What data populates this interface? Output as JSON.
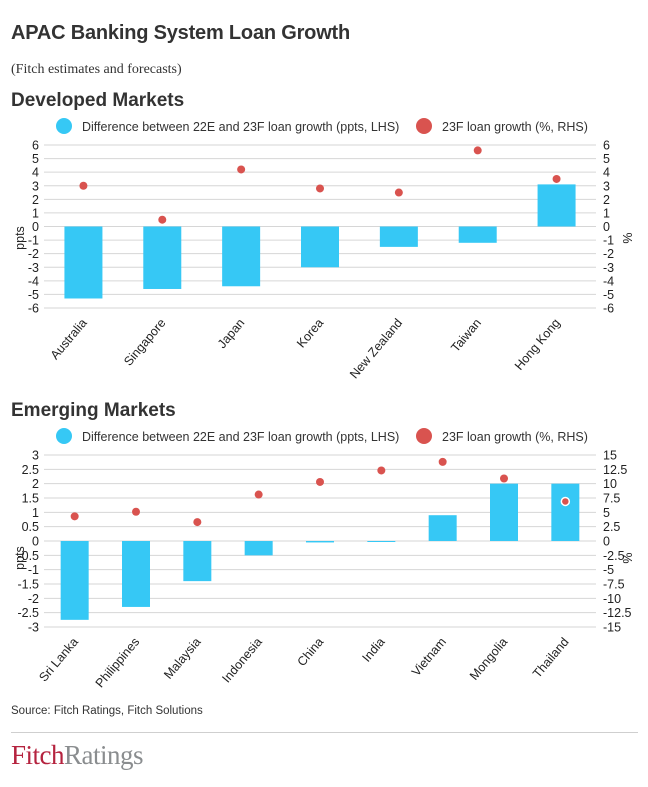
{
  "header": {
    "title": "APAC Banking System Loan Growth",
    "subtitle": "(Fitch estimates and forecasts)"
  },
  "legend": {
    "bars_label": "Difference between 22E and 23F loan growth (ppts, LHS)",
    "dots_label": "23F loan growth (%, RHS)"
  },
  "colors": {
    "bar": "#36c8f5",
    "dot": "#d9534f",
    "grid": "#d6d6d6",
    "text": "#222222"
  },
  "chart_data": [
    {
      "type": "bar",
      "title": "Developed Markets",
      "categories": [
        "Australia",
        "Singapore",
        "Japan",
        "Korea",
        "New Zealand",
        "Taiwan",
        "Hong Kong"
      ],
      "series": [
        {
          "name": "Difference between 22E and 23F loan growth (ppts, LHS)",
          "type": "bar",
          "axis": "left",
          "values": [
            -5.3,
            -4.6,
            -4.4,
            -3.0,
            -1.5,
            -1.2,
            3.1
          ]
        },
        {
          "name": "23F loan growth (%, RHS)",
          "type": "scatter",
          "axis": "right",
          "values": [
            3.0,
            0.5,
            4.2,
            2.8,
            2.5,
            5.6,
            3.5
          ]
        }
      ],
      "ylabel_left": "ppts",
      "ylabel_right": "%",
      "ylim_left": [
        -6,
        6
      ],
      "ylim_right": [
        -6,
        6
      ],
      "left_ticks": [
        "6",
        "5",
        "4",
        "3",
        "2",
        "1",
        "0",
        "-1",
        "-2",
        "-3",
        "-4",
        "-5",
        "-6"
      ],
      "right_ticks": [
        "6",
        "5",
        "4",
        "3",
        "2",
        "1",
        "0",
        "-1",
        "-2",
        "-3",
        "-4",
        "-5",
        "-6"
      ],
      "grid": true,
      "legend_position": "top"
    },
    {
      "type": "bar",
      "title": "Emerging Markets",
      "categories": [
        "Sri Lanka",
        "Philippines",
        "Malaysia",
        "Indonesia",
        "China",
        "India",
        "Vietnam",
        "Mongolia",
        "Thailand"
      ],
      "series": [
        {
          "name": "Difference between 22E and 23F loan growth (ppts, LHS)",
          "type": "bar",
          "axis": "left",
          "values": [
            -2.75,
            -2.3,
            -1.4,
            -0.5,
            -0.05,
            0.0,
            0.9,
            2.0,
            2.0
          ]
        },
        {
          "name": "23F loan growth (%, RHS)",
          "type": "scatter",
          "axis": "right",
          "values": [
            4.3,
            5.1,
            3.3,
            8.1,
            10.3,
            12.3,
            13.8,
            10.9,
            6.9
          ]
        }
      ],
      "ylabel_left": "ppts",
      "ylabel_right": "%",
      "ylim_left": [
        -3,
        3
      ],
      "ylim_right": [
        -15,
        15
      ],
      "left_ticks": [
        "3",
        "2.5",
        "2",
        "1.5",
        "1",
        "0.5",
        "0",
        "-0.5",
        "-1",
        "-1.5",
        "-2",
        "-2.5",
        "-3"
      ],
      "right_ticks": [
        "15",
        "12.5",
        "10",
        "7.5",
        "5",
        "2.5",
        "0",
        "-2.5",
        "-5",
        "-7.5",
        "-10",
        "-12.5",
        "-15"
      ],
      "grid": true,
      "legend_position": "top"
    }
  ],
  "footer": {
    "source": "Source: Fitch Ratings, Fitch Solutions",
    "logo_fitch": "Fitch",
    "logo_ratings": "Ratings"
  }
}
